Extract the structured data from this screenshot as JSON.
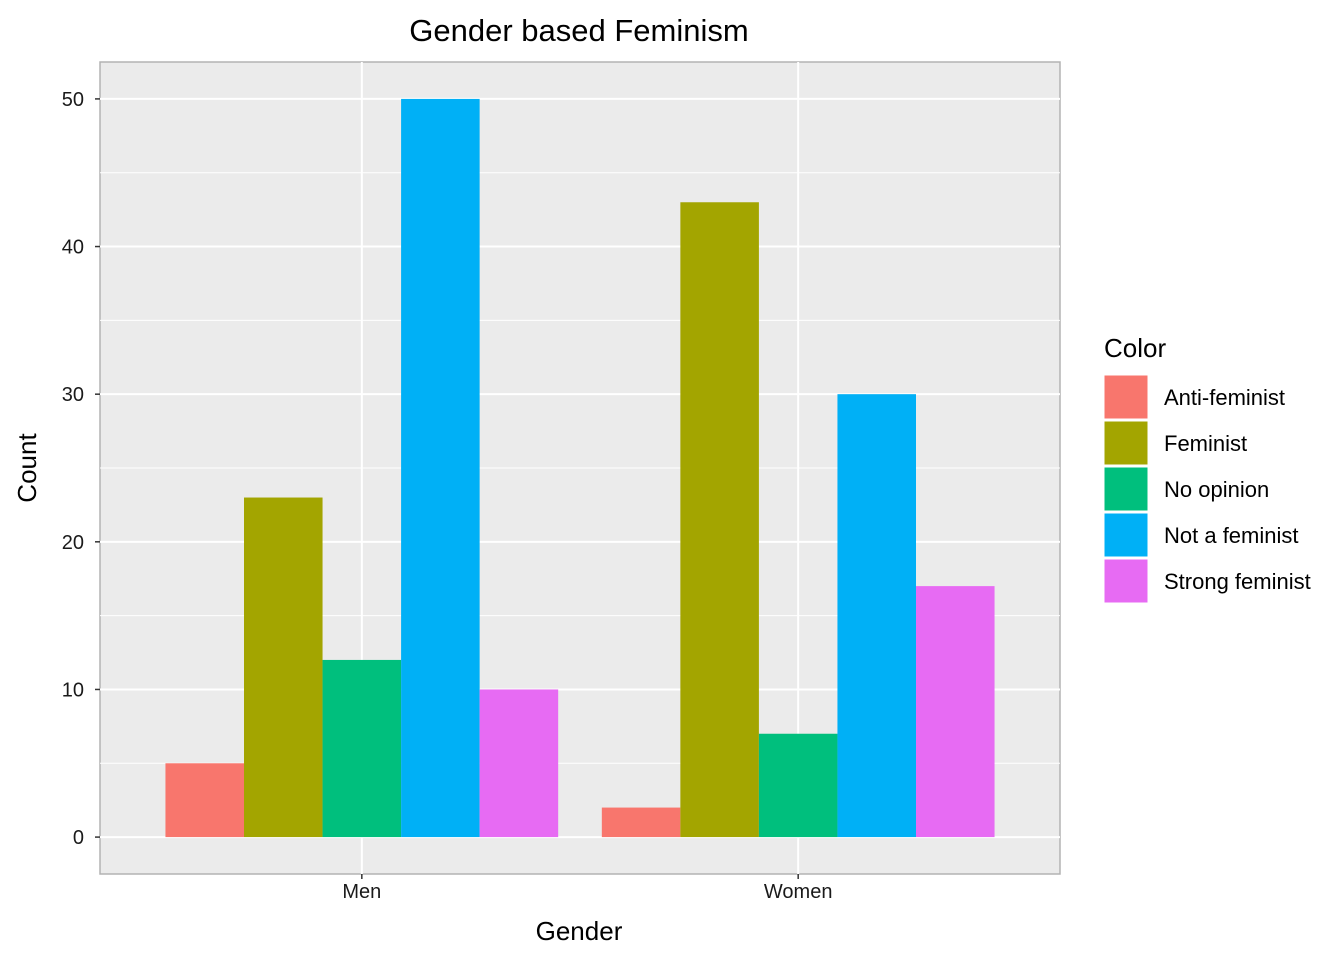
{
  "chart_data": {
    "type": "bar",
    "title": "Gender based Feminism",
    "xlabel": "Gender",
    "ylabel": "Count",
    "categories": [
      "Men",
      "Women"
    ],
    "ylim": [
      -2.5,
      52.5
    ],
    "yticks": [
      0,
      10,
      20,
      30,
      40,
      50
    ],
    "grid": true,
    "legend": {
      "title": "Color",
      "placement": "right"
    },
    "series": [
      {
        "name": "Anti-feminist",
        "color": "#F8766D",
        "values": [
          5,
          2
        ]
      },
      {
        "name": "Feminist",
        "color": "#A3A500",
        "values": [
          23,
          43
        ]
      },
      {
        "name": "No opinion",
        "color": "#00BF7D",
        "values": [
          12,
          7
        ]
      },
      {
        "name": "Not a feminist",
        "color": "#00B0F6",
        "values": [
          50,
          30
        ]
      },
      {
        "name": "Strong feminist",
        "color": "#E76BF3",
        "values": [
          10,
          17
        ]
      }
    ],
    "panel_background": "#EBEBEB",
    "grid_color": "#FFFFFF",
    "panel_border_color": "#B3B3B3"
  }
}
